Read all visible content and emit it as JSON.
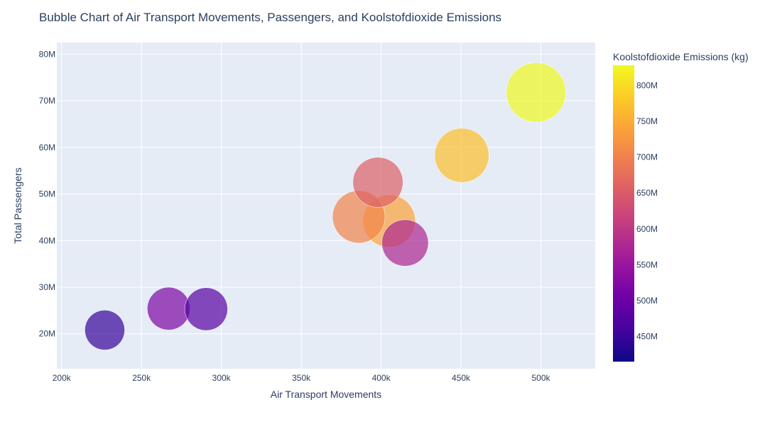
{
  "chart_data": {
    "type": "scatter",
    "title": "Bubble Chart of Air Transport Movements, Passengers, and Koolstofdioxide Emissions",
    "xlabel": "Air Transport Movements",
    "ylabel": "Total Passengers",
    "xlim": [
      197000,
      534000
    ],
    "ylim": [
      12500000,
      82500000
    ],
    "x_ticks": [
      200000,
      250000,
      300000,
      350000,
      400000,
      450000,
      500000
    ],
    "x_tick_labels": [
      "200k",
      "250k",
      "300k",
      "350k",
      "400k",
      "450k",
      "500k"
    ],
    "y_ticks": [
      20000000,
      30000000,
      40000000,
      50000000,
      60000000,
      70000000,
      80000000
    ],
    "y_tick_labels": [
      "20M",
      "30M",
      "40M",
      "50M",
      "60M",
      "70M",
      "80M"
    ],
    "grid": true,
    "colorbar": {
      "title": "Koolstofdioxide Emissions (kg)",
      "range": [
        415000000,
        828000000
      ],
      "ticks": [
        450000000,
        500000000,
        550000000,
        600000000,
        650000000,
        700000000,
        750000000,
        800000000
      ],
      "tick_labels": [
        "450M",
        "500M",
        "550M",
        "600M",
        "650M",
        "700M",
        "750M",
        "800M"
      ],
      "colorscale": [
        "#0d0887",
        "#46039f",
        "#7201a8",
        "#9c179e",
        "#bd3786",
        "#d8576b",
        "#ed7953",
        "#fb9f3a",
        "#fdca26",
        "#f0f921"
      ]
    },
    "points": [
      {
        "x": 227000,
        "y": 20800000,
        "size": 0.67,
        "color": 450000000
      },
      {
        "x": 267000,
        "y": 25400000,
        "size": 0.72,
        "color": 520000000
      },
      {
        "x": 290500,
        "y": 25300000,
        "size": 0.72,
        "color": 480000000
      },
      {
        "x": 415000,
        "y": 39500000,
        "size": 0.78,
        "color": 575000000
      },
      {
        "x": 405000,
        "y": 44200000,
        "size": 0.88,
        "color": 740000000
      },
      {
        "x": 386000,
        "y": 45100000,
        "size": 0.88,
        "color": 705000000
      },
      {
        "x": 398000,
        "y": 52500000,
        "size": 0.84,
        "color": 655000000
      },
      {
        "x": 450500,
        "y": 58300000,
        "size": 0.91,
        "color": 770000000
      },
      {
        "x": 497000,
        "y": 71800000,
        "size": 1.0,
        "color": 828000000
      }
    ]
  }
}
